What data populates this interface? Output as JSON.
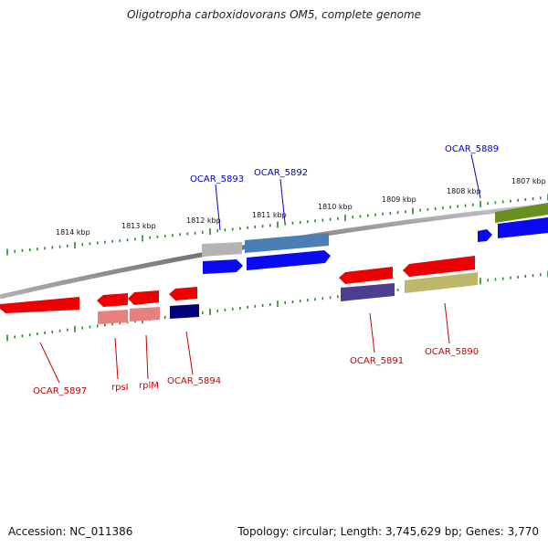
{
  "title": "Oligotropha carboxidovorans OM5, complete genome",
  "footer": {
    "accession": "Accession: NC_011386",
    "summary": "Topology: circular; Length: 3,745,629 bp; Genes: 3,770"
  },
  "colors": {
    "backbone": "#888888",
    "tick": "#228b22",
    "forward_label": "#0000cc",
    "reverse_label": "#cc0000"
  },
  "scale": {
    "unit": "kbp",
    "labels": [
      "1814 kbp",
      "1813 kbp",
      "1812 kbp",
      "1811 kbp",
      "1810 kbp",
      "1809 kbp",
      "1808 kbp",
      "1807 kbp"
    ]
  },
  "genes": {
    "forward": [
      {
        "label": "OCAR_5893",
        "color": "#1010f0"
      },
      {
        "label": "OCAR_5892",
        "color": "#1010f0"
      },
      {
        "label": "OCAR_5889",
        "color": "#1010f0"
      }
    ],
    "reverse": [
      {
        "label": "OCAR_5897",
        "color": "#ee0000"
      },
      {
        "label": "rpsI",
        "color": "#ee0000"
      },
      {
        "label": "rplM",
        "color": "#ee0000"
      },
      {
        "label": "OCAR_5894",
        "color": "#ee0000"
      },
      {
        "label": "OCAR_5891",
        "color": "#ee0000"
      },
      {
        "label": "OCAR_5890",
        "color": "#ee0000"
      }
    ]
  }
}
